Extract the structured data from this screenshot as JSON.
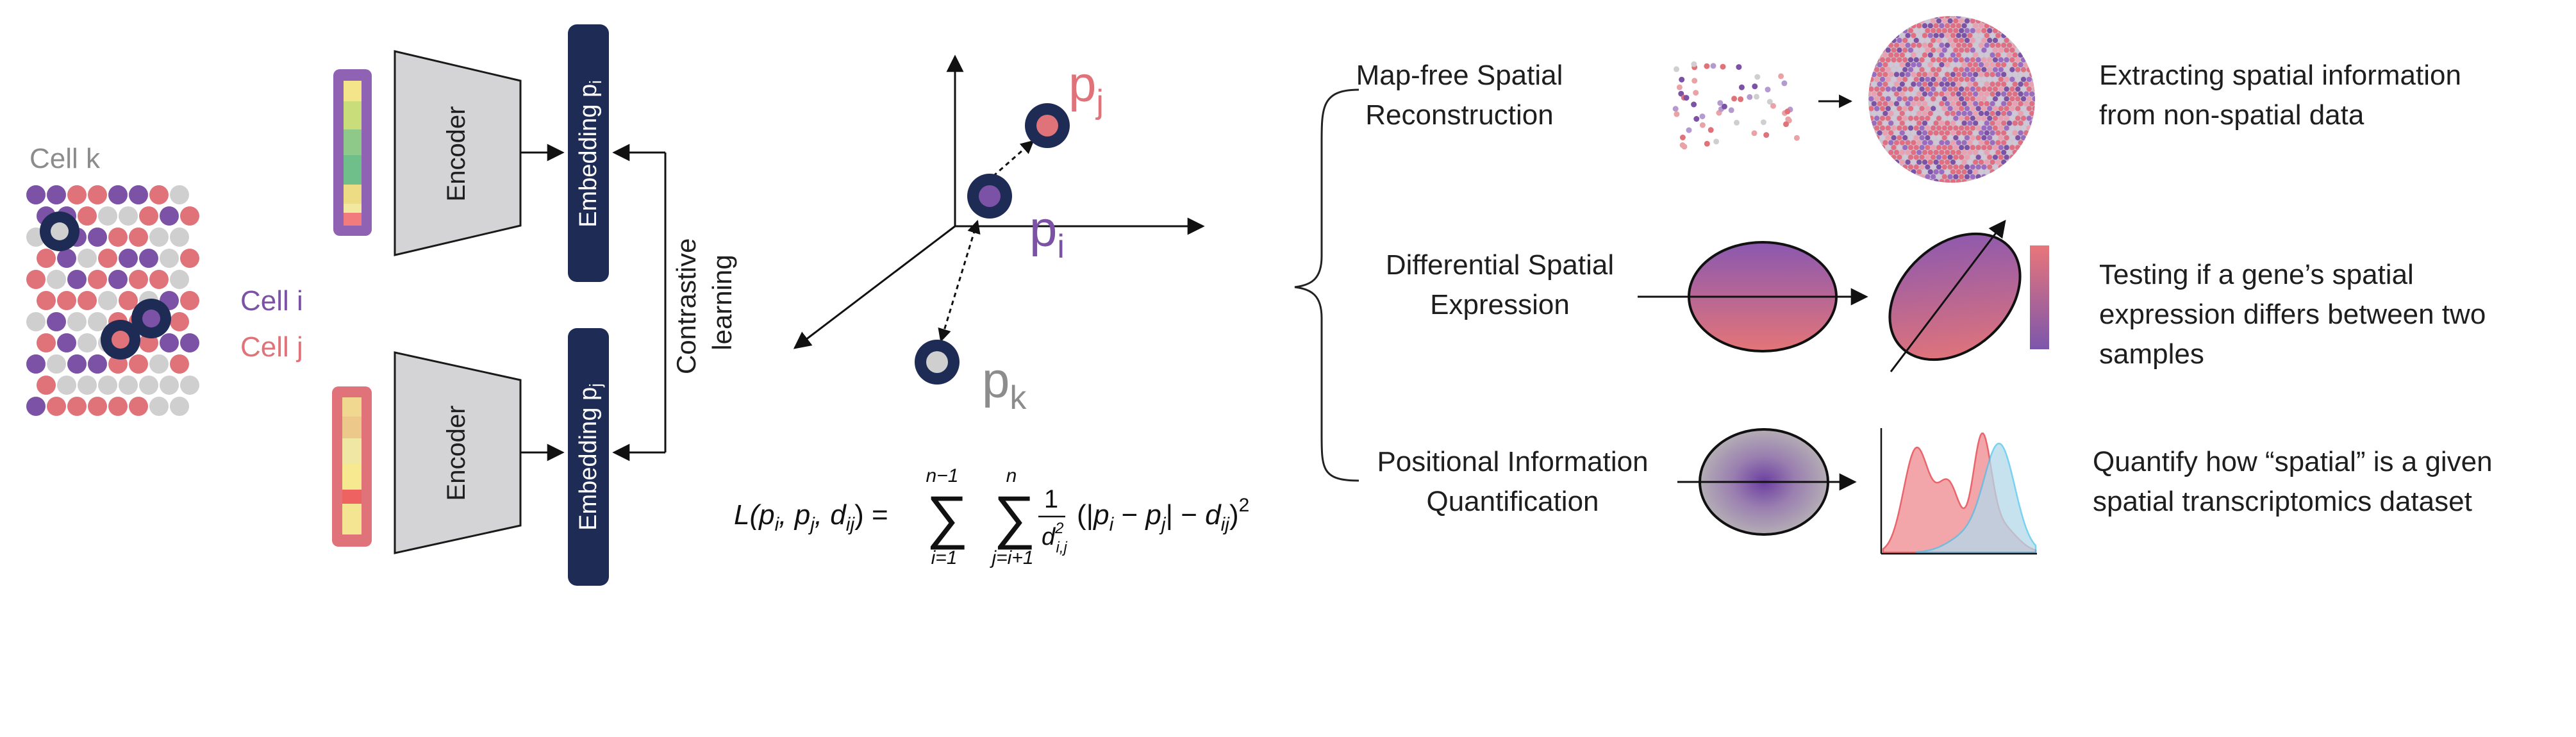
{
  "colors": {
    "purple": "#7b52a6",
    "pink": "#df7379",
    "grey": "#cfcfcf",
    "navy": "#1d2b55",
    "encoder_fill": "#d4d4d6"
  },
  "grid": {
    "cell_k_label": "Cell k",
    "cell_i_label": "Cell i",
    "cell_j_label": "Cell j"
  },
  "encoders": {
    "top_label": "Encoder",
    "bottom_label": "Encoder",
    "embedding_top_label": "Embedding p",
    "embedding_top_sub": "i",
    "embedding_bottom_label": "Embedding p",
    "embedding_bottom_sub": "j",
    "contrastive_line1": "Contrastive",
    "contrastive_line2": "learning"
  },
  "embedding_space": {
    "p_j": "p",
    "p_j_sub": "j",
    "p_i": "p",
    "p_i_sub": "i",
    "p_k": "p",
    "p_k_sub": "k"
  },
  "loss": {
    "lhs": "L(p",
    "formula_text": "L(p_i, p_j, d_ij) = Σ_{i=1}^{n−1} Σ_{j=i+1}^{n} 1/d²_{i,j} (|p_i − p_j| − d_ij)²"
  },
  "applications": [
    {
      "title_line1": "Map-free Spatial",
      "title_line2": "Reconstruction",
      "desc_line1": "Extracting spatial information",
      "desc_line2": "from non-spatial data"
    },
    {
      "title_line1": "Differential Spatial",
      "title_line2": "Expression",
      "desc_line1": "Testing if a gene’s spatial",
      "desc_line2": "expression differs between two",
      "desc_line3": "samples"
    },
    {
      "title_line1": "Positional Information",
      "title_line2": "Quantification",
      "desc_line1": "Quantify how “spatial” is a given",
      "desc_line2": "spatial transcriptomics dataset"
    }
  ]
}
